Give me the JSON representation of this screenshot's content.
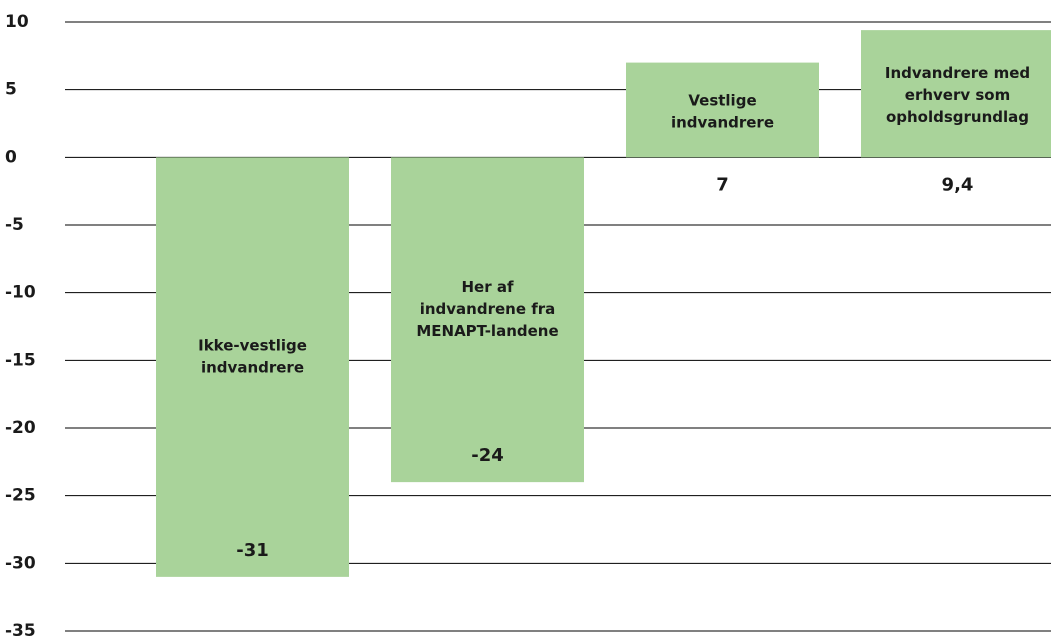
{
  "chart_data": {
    "type": "bar",
    "categories": [
      [
        "Ikke-vestlige",
        "indvandrere"
      ],
      [
        "Her af",
        "indvandrene fra",
        "MENAPT-landene"
      ],
      [
        "Vestlige",
        "indvandrere"
      ],
      [
        "Indvandrere med",
        "erhverv som",
        "opholdsgrundlag"
      ]
    ],
    "values": [
      -31,
      -24,
      7,
      9.4
    ],
    "value_labels": [
      "-31",
      "-24",
      "7",
      "9,4"
    ],
    "color": "#a9d39a",
    "ylim": [
      -35,
      10
    ],
    "yticks": [
      -35,
      -30,
      -25,
      -20,
      -15,
      -10,
      -5,
      0,
      5,
      10
    ],
    "grid": true
  }
}
